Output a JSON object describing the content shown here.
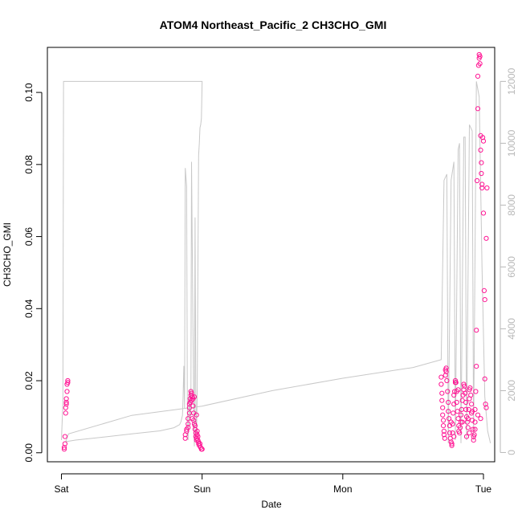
{
  "chart_data": {
    "type": "scatter",
    "title": "ATOM4 Northeast_Pacific_2 CH3CHO_GMI",
    "xlabel": "Date",
    "ylabel": "CH3CHO_GMI",
    "x_tick_labels": [
      "Sat",
      "Sun",
      "Mon",
      "Tue"
    ],
    "x_unit": "days since Sat 00:00",
    "xlim": [
      -0.1,
      3.08
    ],
    "ylim": [
      -0.0025,
      0.1125
    ],
    "y_ticks": [
      0.0,
      0.02,
      0.04,
      0.06,
      0.08,
      0.1
    ],
    "y_tick_labels": [
      "0.00",
      "0.02",
      "0.04",
      "0.06",
      "0.08",
      "0.10"
    ],
    "y2_ticks": [
      0,
      2000,
      4000,
      6000,
      8000,
      10000,
      12000
    ],
    "y2_tick_labels": [
      "0",
      "2000",
      "4000",
      "6000",
      "8000",
      "10000",
      "12000"
    ],
    "y2lim": [
      -300,
      13100
    ],
    "colors": {
      "points": "#ff1493",
      "points_fill": "none",
      "altitude_line": "#c8c8c8",
      "right_axis": "#b8b8b8",
      "frame": "#000000"
    },
    "series": [
      {
        "type": "scatter",
        "values": [
          [
            0.02,
            0.001
          ],
          [
            0.02,
            0.0015
          ],
          [
            0.025,
            0.0025
          ],
          [
            0.025,
            0.0045
          ],
          [
            0.03,
            0.011
          ],
          [
            0.03,
            0.0125
          ],
          [
            0.035,
            0.0135
          ],
          [
            0.035,
            0.014
          ],
          [
            0.035,
            0.015
          ],
          [
            0.04,
            0.017
          ],
          [
            0.04,
            0.019
          ],
          [
            0.045,
            0.0195
          ],
          [
            0.045,
            0.02
          ],
          [
            0.88,
            0.004
          ],
          [
            0.88,
            0.005
          ],
          [
            0.89,
            0.006
          ],
          [
            0.89,
            0.0065
          ],
          [
            0.9,
            0.007
          ],
          [
            0.9,
            0.008
          ],
          [
            0.9,
            0.0095
          ],
          [
            0.91,
            0.011
          ],
          [
            0.91,
            0.0125
          ],
          [
            0.915,
            0.014
          ],
          [
            0.915,
            0.015
          ],
          [
            0.92,
            0.016
          ],
          [
            0.92,
            0.017
          ],
          [
            0.925,
            0.0165
          ],
          [
            0.93,
            0.0155
          ],
          [
            0.935,
            0.015
          ],
          [
            0.935,
            0.013
          ],
          [
            0.94,
            0.011
          ],
          [
            0.94,
            0.009
          ],
          [
            0.945,
            0.008
          ],
          [
            0.95,
            0.0075
          ],
          [
            0.95,
            0.0065
          ],
          [
            0.955,
            0.0055
          ],
          [
            0.955,
            0.0045
          ],
          [
            0.96,
            0.0035
          ],
          [
            0.96,
            0.004
          ],
          [
            0.965,
            0.005
          ],
          [
            0.965,
            0.006
          ],
          [
            0.97,
            0.0045
          ],
          [
            0.97,
            0.0035
          ],
          [
            0.975,
            0.003
          ],
          [
            0.975,
            0.0025
          ],
          [
            0.98,
            0.002
          ],
          [
            0.985,
            0.0025
          ],
          [
            0.99,
            0.0015
          ],
          [
            0.995,
            0.001
          ],
          [
            1.0,
            0.001
          ],
          [
            0.925,
            0.0145
          ],
          [
            0.945,
            0.0155
          ],
          [
            0.96,
            0.0105
          ],
          [
            0.93,
            0.0095
          ],
          [
            0.91,
            0.0135
          ],
          [
            2.7,
            0.021
          ],
          [
            2.7,
            0.019
          ],
          [
            2.705,
            0.0165
          ],
          [
            2.705,
            0.0145
          ],
          [
            2.71,
            0.0125
          ],
          [
            2.71,
            0.0105
          ],
          [
            2.715,
            0.009
          ],
          [
            2.715,
            0.0075
          ],
          [
            2.72,
            0.006
          ],
          [
            2.72,
            0.005
          ],
          [
            2.725,
            0.004
          ],
          [
            2.73,
            0.0215
          ],
          [
            2.73,
            0.023
          ],
          [
            2.735,
            0.0235
          ],
          [
            2.735,
            0.0225
          ],
          [
            2.74,
            0.02
          ],
          [
            2.745,
            0.017
          ],
          [
            2.75,
            0.014
          ],
          [
            2.75,
            0.0115
          ],
          [
            2.755,
            0.0095
          ],
          [
            2.76,
            0.0075
          ],
          [
            2.76,
            0.0055
          ],
          [
            2.765,
            0.004
          ],
          [
            2.77,
            0.003
          ],
          [
            2.775,
            0.0025
          ],
          [
            2.775,
            0.002
          ],
          [
            2.78,
            0.0055
          ],
          [
            2.78,
            0.008
          ],
          [
            2.785,
            0.011
          ],
          [
            2.79,
            0.0135
          ],
          [
            2.79,
            0.016
          ],
          [
            2.795,
            0.017
          ],
          [
            2.8,
            0.0195
          ],
          [
            2.8,
            0.02
          ],
          [
            2.805,
            0.0195
          ],
          [
            2.81,
            0.017
          ],
          [
            2.81,
            0.014
          ],
          [
            2.815,
            0.0115
          ],
          [
            2.82,
            0.0095
          ],
          [
            2.825,
            0.0075
          ],
          [
            2.825,
            0.006
          ],
          [
            2.83,
            0.0055
          ],
          [
            2.835,
            0.007
          ],
          [
            2.84,
            0.0085
          ],
          [
            2.84,
            0.0105
          ],
          [
            2.845,
            0.012
          ],
          [
            2.85,
            0.0145
          ],
          [
            2.855,
            0.016
          ],
          [
            2.86,
            0.0175
          ],
          [
            2.86,
            0.019
          ],
          [
            2.865,
            0.0185
          ],
          [
            2.87,
            0.0165
          ],
          [
            2.875,
            0.014
          ],
          [
            2.875,
            0.012
          ],
          [
            2.88,
            0.01
          ],
          [
            2.885,
            0.0085
          ],
          [
            2.89,
            0.007
          ],
          [
            2.89,
            0.0095
          ],
          [
            2.895,
            0.012
          ],
          [
            2.9,
            0.015
          ],
          [
            2.9,
            0.0175
          ],
          [
            2.905,
            0.018
          ],
          [
            2.91,
            0.016
          ],
          [
            2.915,
            0.0135
          ],
          [
            2.915,
            0.011
          ],
          [
            2.92,
            0.009
          ],
          [
            2.925,
            0.0065
          ],
          [
            2.93,
            0.0045
          ],
          [
            2.93,
            0.0035
          ],
          [
            2.935,
            0.005
          ],
          [
            2.94,
            0.0085
          ],
          [
            2.94,
            0.012
          ],
          [
            2.945,
            0.017
          ],
          [
            2.95,
            0.024
          ],
          [
            2.95,
            0.034
          ],
          [
            2.955,
            0.0755
          ],
          [
            2.96,
            0.0955
          ],
          [
            2.96,
            0.1045
          ],
          [
            2.965,
            0.1075
          ],
          [
            2.97,
            0.1095
          ],
          [
            2.97,
            0.1105
          ],
          [
            2.975,
            0.11
          ],
          [
            2.975,
            0.108
          ],
          [
            2.98,
            0.088
          ],
          [
            2.98,
            0.084
          ],
          [
            2.985,
            0.0805
          ],
          [
            2.985,
            0.0775
          ],
          [
            2.99,
            0.0735
          ],
          [
            2.99,
            0.0745
          ],
          [
            2.995,
            0.0875
          ],
          [
            3.0,
            0.0865
          ],
          [
            3.0,
            0.0665
          ],
          [
            3.005,
            0.045
          ],
          [
            3.01,
            0.0425
          ],
          [
            3.01,
            0.0205
          ],
          [
            3.015,
            0.0135
          ],
          [
            3.02,
            0.0125
          ],
          [
            3.02,
            0.0595
          ],
          [
            3.025,
            0.0735
          ],
          [
            2.77,
            0.0085
          ],
          [
            2.79,
            0.0045
          ],
          [
            2.82,
            0.0175
          ],
          [
            2.85,
            0.0085
          ],
          [
            2.88,
            0.0045
          ],
          [
            2.9,
            0.0055
          ],
          [
            2.92,
            0.0115
          ],
          [
            2.94,
            0.0065
          ],
          [
            2.96,
            0.0105
          ],
          [
            2.98,
            0.0095
          ]
        ]
      },
      {
        "type": "line",
        "axis": "right",
        "values": [
          [
            0.0,
            400
          ],
          [
            0.01,
            1600
          ],
          [
            0.015,
            12000
          ],
          [
            1.0,
            12000
          ],
          [
            0.995,
            10800
          ],
          [
            0.99,
            10600
          ],
          [
            0.985,
            10500
          ],
          [
            0.98,
            10000
          ],
          [
            0.975,
            9600
          ],
          [
            0.965,
            1800
          ],
          [
            0.96,
            600
          ],
          [
            0.955,
            1800
          ],
          [
            0.95,
            7600
          ],
          [
            0.945,
            200
          ],
          [
            0.94,
            1600
          ],
          [
            0.935,
            4000
          ],
          [
            0.925,
            9400
          ],
          [
            0.92,
            1400
          ],
          [
            0.915,
            1000
          ],
          [
            0.91,
            2000
          ],
          [
            0.9,
            400
          ],
          [
            0.895,
            1500
          ],
          [
            0.89,
            8600
          ],
          [
            0.88,
            9200
          ],
          [
            0.875,
            1400
          ],
          [
            0.87,
            2800
          ],
          [
            0.865,
            1800
          ],
          [
            0.86,
            1200
          ],
          [
            0.85,
            1000
          ],
          [
            0.84,
            900
          ],
          [
            0.8,
            800
          ],
          [
            0.7,
            700
          ],
          [
            0.5,
            600
          ],
          [
            0.3,
            500
          ],
          [
            0.1,
            400
          ],
          [
            0.03,
            350
          ],
          [
            0.05,
            600
          ],
          [
            0.5,
            1200
          ],
          [
            1.0,
            1500
          ],
          [
            1.5,
            2000
          ],
          [
            2.0,
            2400
          ],
          [
            2.5,
            2750
          ],
          [
            2.7,
            3000
          ],
          [
            2.72,
            8800
          ],
          [
            2.74,
            9000
          ],
          [
            2.75,
            300
          ],
          [
            2.77,
            8800
          ],
          [
            2.79,
            9400
          ],
          [
            2.8,
            400
          ],
          [
            2.82,
            9800
          ],
          [
            2.83,
            10000
          ],
          [
            2.84,
            300
          ],
          [
            2.86,
            10200
          ],
          [
            2.87,
            10200
          ],
          [
            2.88,
            400
          ],
          [
            2.9,
            10600
          ],
          [
            2.92,
            10400
          ],
          [
            2.93,
            400
          ],
          [
            2.95,
            12000
          ],
          [
            2.97,
            11500
          ],
          [
            2.99,
            6000
          ],
          [
            3.01,
            1800
          ],
          [
            3.03,
            700
          ],
          [
            3.05,
            300
          ]
        ]
      }
    ]
  }
}
